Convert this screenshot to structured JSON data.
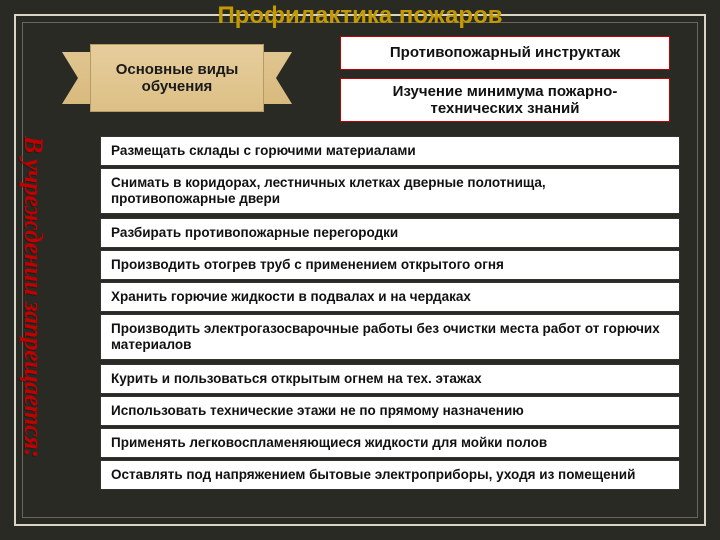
{
  "title": {
    "text": "Профилактика пожаров",
    "color": "#c49a00"
  },
  "ribbon": {
    "lines": "Основные виды обучения",
    "fill_top": "#e6cd9c",
    "fill_bottom": "#dcc086",
    "border": "#b89b62"
  },
  "right_boxes": [
    {
      "text": "Противопожарный инструктаж"
    },
    {
      "text": "Изучение минимума пожарно-технических знаний"
    }
  ],
  "right_box_style": {
    "border_color": "#c00000",
    "bg": "#ffffff"
  },
  "vertical_caption": {
    "text": "В учреждении запрещается:",
    "color": "#c00000",
    "font_style": "italic",
    "font_weight": "bold"
  },
  "items": [
    "Размещать склады с горючими материалами",
    "Снимать в коридорах, лестничных клетках дверные полотнища, противопожарные двери",
    "Разбирать противопожарные перегородки",
    "Производить отогрев труб с применением открытого огня",
    "Хранить горючие жидкости в подвалах и на чердаках",
    "Производить электрогазосварочные работы без очистки места работ от горючих материалов",
    "Курить и пользоваться открытым огнем на тех. этажах",
    "Использовать технические этажи не по прямому назначению",
    "Применять легковоспламеняющиеся жидкости для мойки полов",
    "Оставлять под напряжением бытовые электроприборы, уходя из помещений"
  ],
  "item_tops": [
    136,
    168,
    218,
    250,
    282,
    314,
    364,
    396,
    428,
    460
  ],
  "item_style": {
    "bg": "#ffffff",
    "border": "#333333",
    "font_size": 13.5
  },
  "background": "#2a2a24",
  "frame_color": "#d8d4c6"
}
